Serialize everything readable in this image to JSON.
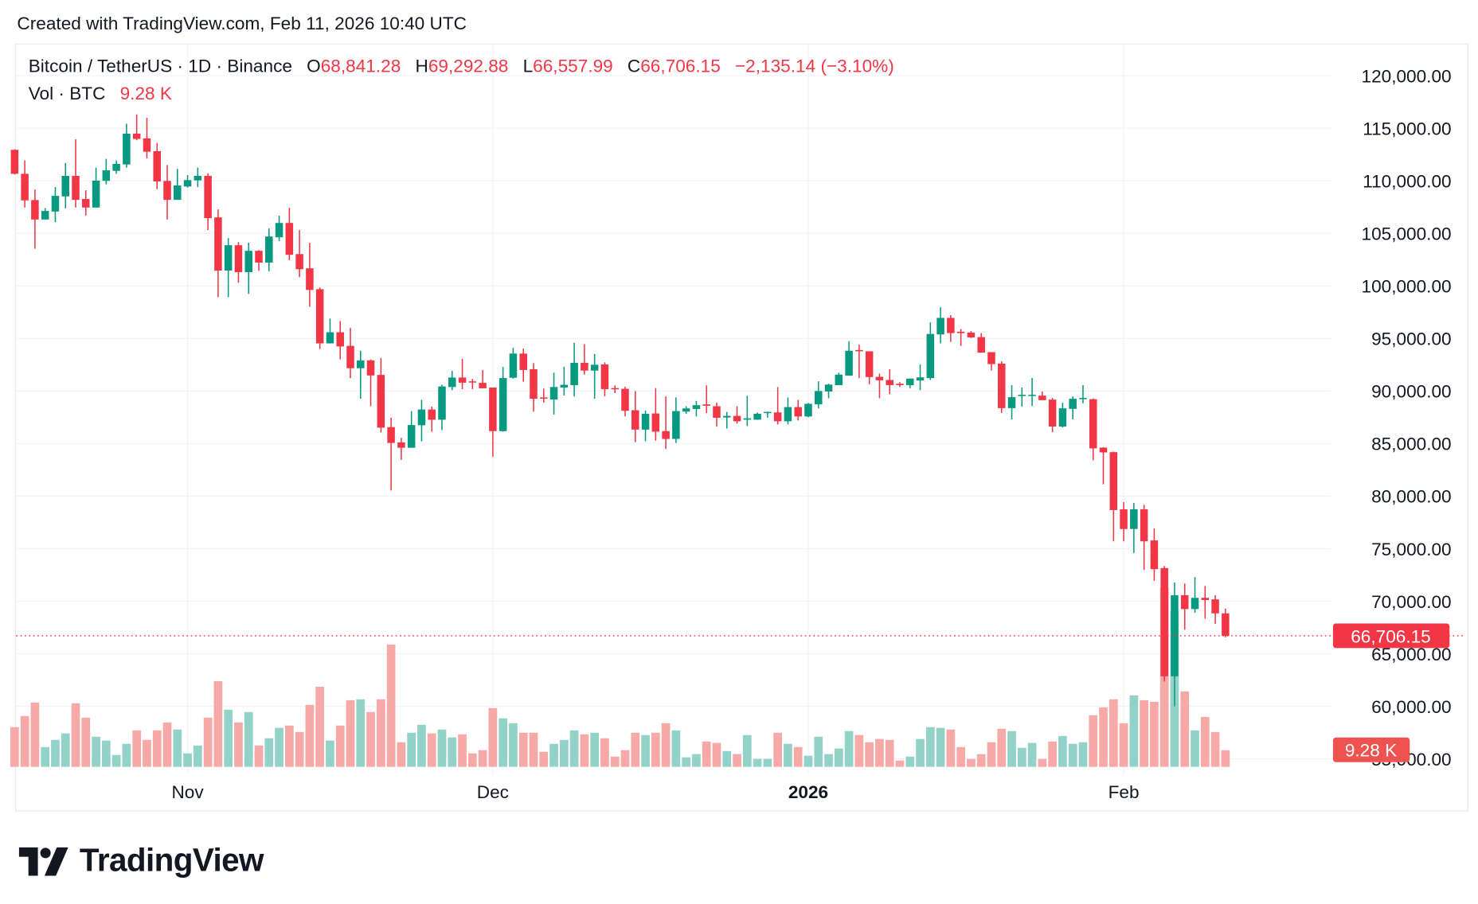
{
  "header": {
    "created_text": "Created with TradingView.com, Feb 11, 2026 10:40 UTC"
  },
  "legend": {
    "symbol": "Bitcoin / TetherUS · 1D · Binance",
    "open_label": "O",
    "open": "68,841.28",
    "high_label": "H",
    "high": "69,292.88",
    "low_label": "L",
    "low": "66,557.99",
    "close_label": "C",
    "close": "66,706.15",
    "change": "−2,135.14 (−3.10%)",
    "vol_label": "Vol · BTC",
    "vol": "9.28 K"
  },
  "logo": {
    "text": "TradingView"
  },
  "colors": {
    "up": "#089981",
    "down": "#f23645",
    "vol_up": "#92d2c8",
    "vol_down": "#f7a9a7",
    "grid": "#f0f3fa"
  },
  "chart_data": {
    "type": "candlestick",
    "interval": "1D",
    "ylim": [
      55000,
      122000
    ],
    "y_ticks": [
      "120,000.00",
      "115,000.00",
      "110,000.00",
      "105,000.00",
      "100,000.00",
      "95,000.00",
      "90,000.00",
      "85,000.00",
      "80,000.00",
      "75,000.00",
      "70,000.00",
      "65,000.00",
      "60,000.00",
      "55,000.00"
    ],
    "y_tick_values": [
      120000,
      115000,
      110000,
      105000,
      100000,
      95000,
      90000,
      85000,
      80000,
      75000,
      70000,
      65000,
      60000,
      55000
    ],
    "x_ticks": [
      {
        "label": "Nov",
        "date": "2025-11-01",
        "bold": false
      },
      {
        "label": "Dec",
        "date": "2025-12-01",
        "bold": false
      },
      {
        "label": "2026",
        "date": "2026-01-01",
        "bold": true
      },
      {
        "label": "Feb",
        "date": "2026-02-01",
        "bold": false
      }
    ],
    "last_price_label": "66,706.15",
    "last_price": 66706.15,
    "last_volume_label": "9.28 K",
    "grid": true,
    "volume_unit": "K BTC",
    "candles_columns": [
      "date",
      "open",
      "high",
      "low",
      "close",
      "volume"
    ],
    "candles": [
      [
        "2025-10-15",
        112950,
        113000,
        110600,
        110670,
        22.1
      ],
      [
        "2025-10-16",
        110670,
        111940,
        107460,
        108140,
        28.3
      ],
      [
        "2025-10-17",
        108170,
        109180,
        103540,
        106320,
        35.8
      ],
      [
        "2025-10-18",
        106320,
        107410,
        106320,
        107130,
        11.0
      ],
      [
        "2025-10-19",
        107080,
        109410,
        106070,
        108570,
        15.0
      ],
      [
        "2025-10-20",
        108520,
        111690,
        107380,
        110470,
        18.6
      ],
      [
        "2025-10-21",
        110470,
        113960,
        107460,
        108190,
        35.4
      ],
      [
        "2025-10-22",
        108270,
        109100,
        106700,
        107460,
        27.4
      ],
      [
        "2025-10-23",
        107460,
        111260,
        107460,
        110020,
        16.8
      ],
      [
        "2025-10-24",
        110000,
        112090,
        109660,
        111000,
        14.6
      ],
      [
        "2025-10-25",
        110950,
        111940,
        110670,
        111610,
        6.6
      ],
      [
        "2025-10-26",
        111560,
        115430,
        111260,
        114490,
        12.8
      ],
      [
        "2025-10-27",
        114490,
        116320,
        113860,
        113990,
        20.3
      ],
      [
        "2025-10-28",
        114040,
        116010,
        112140,
        112770,
        15.0
      ],
      [
        "2025-10-29",
        112820,
        113610,
        109210,
        109940,
        20.3
      ],
      [
        "2025-10-30",
        109990,
        111510,
        106320,
        108190,
        24.7
      ],
      [
        "2025-10-31",
        108190,
        111130,
        108190,
        109560,
        20.8
      ],
      [
        "2025-11-01",
        109460,
        110550,
        109360,
        110070,
        7.5
      ],
      [
        "2025-11-02",
        110040,
        111260,
        109410,
        110470,
        11.9
      ],
      [
        "2025-11-03",
        110470,
        110720,
        105310,
        106450,
        27.4
      ],
      [
        "2025-11-04",
        106520,
        107280,
        98930,
        101460,
        47.7
      ],
      [
        "2025-11-05",
        101460,
        104550,
        98930,
        103870,
        31.8
      ],
      [
        "2025-11-06",
        103870,
        104170,
        100300,
        101310,
        24.7
      ],
      [
        "2025-11-07",
        101310,
        104100,
        99240,
        103340,
        30.5
      ],
      [
        "2025-11-08",
        103340,
        103410,
        101440,
        102220,
        11.9
      ],
      [
        "2025-11-09",
        102220,
        105460,
        101390,
        104700,
        15.9
      ],
      [
        "2025-11-10",
        104630,
        106680,
        104270,
        105990,
        21.7
      ],
      [
        "2025-11-11",
        105990,
        107430,
        102450,
        102960,
        23.0
      ],
      [
        "2025-11-12",
        103030,
        105310,
        100830,
        101590,
        19.4
      ],
      [
        "2025-11-13",
        101670,
        104100,
        98020,
        99620,
        34.5
      ],
      [
        "2025-11-14",
        99690,
        99850,
        94000,
        94530,
        44.6
      ],
      [
        "2025-11-15",
        94530,
        96890,
        94530,
        95590,
        14.6
      ],
      [
        "2025-11-16",
        95590,
        96660,
        93010,
        94240,
        23.0
      ],
      [
        "2025-11-17",
        94290,
        96020,
        91230,
        92170,
        37.1
      ],
      [
        "2025-11-18",
        92170,
        93830,
        89260,
        92910,
        37.6
      ],
      [
        "2025-11-19",
        92910,
        92990,
        88550,
        91480,
        30.5
      ],
      [
        "2025-11-20",
        91530,
        93140,
        86050,
        86510,
        37.6
      ],
      [
        "2025-11-21",
        86560,
        87450,
        80540,
        85060,
        68.1
      ],
      [
        "2025-11-22",
        85110,
        85540,
        83450,
        84600,
        13.7
      ],
      [
        "2025-11-23",
        84600,
        88090,
        84600,
        86760,
        19.0
      ],
      [
        "2025-11-24",
        86740,
        89160,
        85210,
        88240,
        23.4
      ],
      [
        "2025-11-25",
        88240,
        88500,
        86120,
        87270,
        18.6
      ],
      [
        "2025-11-26",
        87270,
        90590,
        86280,
        90430,
        20.8
      ],
      [
        "2025-11-27",
        90380,
        91910,
        90080,
        91280,
        16.4
      ],
      [
        "2025-11-28",
        91280,
        93060,
        90180,
        90790,
        18.1
      ],
      [
        "2025-11-29",
        90920,
        91150,
        90180,
        90840,
        7.5
      ],
      [
        "2025-11-30",
        90770,
        91990,
        90260,
        90260,
        9.3
      ],
      [
        "2025-12-01",
        90330,
        90330,
        83750,
        86180,
        32.7
      ],
      [
        "2025-12-02",
        86180,
        92300,
        86130,
        91230,
        27.0
      ],
      [
        "2025-12-03",
        91260,
        94110,
        91180,
        93560,
        24.3
      ],
      [
        "2025-12-04",
        93560,
        94030,
        90890,
        92000,
        19.0
      ],
      [
        "2025-12-05",
        92070,
        92650,
        88040,
        89260,
        19.0
      ],
      [
        "2025-12-06",
        89390,
        90230,
        88880,
        89310,
        8.4
      ],
      [
        "2025-12-07",
        89190,
        91740,
        87760,
        90380,
        12.8
      ],
      [
        "2025-12-08",
        90330,
        92300,
        89570,
        90590,
        15.0
      ],
      [
        "2025-12-09",
        90560,
        94590,
        89490,
        92680,
        20.3
      ],
      [
        "2025-12-10",
        92680,
        94460,
        91560,
        91940,
        18.1
      ],
      [
        "2025-12-11",
        91940,
        93520,
        89260,
        92500,
        19.0
      ],
      [
        "2025-12-12",
        92530,
        92730,
        89490,
        90180,
        15.9
      ],
      [
        "2025-12-13",
        90280,
        90540,
        89800,
        90210,
        5.7
      ],
      [
        "2025-12-14",
        90210,
        90410,
        87580,
        88120,
        9.3
      ],
      [
        "2025-12-15",
        88170,
        90000,
        85130,
        86330,
        19.0
      ],
      [
        "2025-12-16",
        86330,
        88140,
        85210,
        87830,
        17.7
      ],
      [
        "2025-12-17",
        87860,
        90280,
        85280,
        86130,
        19.0
      ],
      [
        "2025-12-18",
        86180,
        89490,
        84470,
        85440,
        24.3
      ],
      [
        "2025-12-19",
        85440,
        89390,
        85060,
        88090,
        20.3
      ],
      [
        "2025-12-20",
        88040,
        88550,
        87830,
        88340,
        5.3
      ],
      [
        "2025-12-21",
        88290,
        89060,
        87580,
        88650,
        7.1
      ],
      [
        "2025-12-22",
        88730,
        90540,
        87890,
        88600,
        14.1
      ],
      [
        "2025-12-23",
        88550,
        88900,
        86610,
        87450,
        13.3
      ],
      [
        "2025-12-24",
        87480,
        88010,
        86430,
        87630,
        8.8
      ],
      [
        "2025-12-25",
        87630,
        88550,
        86890,
        87120,
        7.1
      ],
      [
        "2025-12-26",
        87270,
        89540,
        86660,
        87400,
        17.7
      ],
      [
        "2025-12-27",
        87270,
        87960,
        87270,
        87830,
        4.4
      ],
      [
        "2025-12-28",
        87910,
        88040,
        87450,
        88010,
        4.4
      ],
      [
        "2025-12-29",
        87960,
        90380,
        86810,
        87120,
        19.0
      ],
      [
        "2025-12-30",
        87120,
        89390,
        86810,
        88470,
        12.8
      ],
      [
        "2025-12-31",
        88470,
        89160,
        87200,
        87580,
        11.0
      ],
      [
        "2026-01-01",
        87580,
        88860,
        87500,
        88780,
        6.2
      ],
      [
        "2026-01-02",
        88730,
        90920,
        88340,
        90000,
        16.8
      ],
      [
        "2026-01-03",
        89950,
        90690,
        89310,
        90610,
        7.1
      ],
      [
        "2026-01-04",
        90560,
        91740,
        90560,
        91560,
        10.2
      ],
      [
        "2026-01-05",
        91460,
        94740,
        91460,
        93830,
        19.9
      ],
      [
        "2026-01-06",
        93900,
        94410,
        91230,
        93780,
        17.7
      ],
      [
        "2026-01-07",
        93780,
        93780,
        90640,
        91330,
        13.7
      ],
      [
        "2026-01-08",
        91350,
        91660,
        89310,
        91020,
        15.5
      ],
      [
        "2026-01-09",
        91050,
        92070,
        89700,
        90560,
        15.0
      ],
      [
        "2026-01-10",
        90690,
        90840,
        90380,
        90560,
        3.5
      ],
      [
        "2026-01-11",
        90560,
        91200,
        90260,
        91180,
        5.7
      ],
      [
        "2026-01-12",
        91000,
        92530,
        90080,
        91300,
        15.5
      ],
      [
        "2026-01-13",
        91230,
        96530,
        91050,
        95430,
        22.1
      ],
      [
        "2026-01-14",
        95380,
        97960,
        94540,
        96960,
        21.7
      ],
      [
        "2026-01-15",
        96960,
        97220,
        94670,
        95510,
        20.8
      ],
      [
        "2026-01-16",
        95640,
        95890,
        94290,
        95510,
        11.0
      ],
      [
        "2026-01-17",
        95560,
        95690,
        95050,
        95100,
        4.4
      ],
      [
        "2026-01-18",
        95130,
        95510,
        93650,
        93650,
        7.1
      ],
      [
        "2026-01-19",
        93700,
        93700,
        91950,
        92560,
        13.7
      ],
      [
        "2026-01-20",
        92610,
        92820,
        87910,
        88370,
        21.2
      ],
      [
        "2026-01-21",
        88370,
        90560,
        87300,
        89410,
        19.9
      ],
      [
        "2026-01-22",
        89540,
        90330,
        88520,
        89640,
        10.6
      ],
      [
        "2026-01-23",
        89540,
        91240,
        88570,
        89640,
        13.3
      ],
      [
        "2026-01-24",
        89560,
        89950,
        89130,
        89130,
        4.4
      ],
      [
        "2026-01-25",
        89180,
        89340,
        86080,
        86620,
        14.1
      ],
      [
        "2026-01-26",
        86620,
        88880,
        86540,
        88350,
        17.2
      ],
      [
        "2026-01-27",
        88300,
        89490,
        87300,
        89260,
        12.8
      ],
      [
        "2026-01-28",
        89260,
        90560,
        88830,
        89340,
        13.7
      ],
      [
        "2026-01-29",
        89220,
        89300,
        83400,
        84540,
        28.7
      ],
      [
        "2026-01-30",
        84610,
        84660,
        81120,
        84160,
        33.1
      ],
      [
        "2026-01-31",
        84180,
        84230,
        75700,
        78670,
        37.6
      ],
      [
        "2026-02-01",
        78740,
        79420,
        75700,
        76870,
        24.3
      ],
      [
        "2026-02-02",
        76870,
        79350,
        74590,
        78740,
        39.8
      ],
      [
        "2026-02-03",
        78740,
        79170,
        72970,
        75700,
        37.1
      ],
      [
        "2026-02-04",
        75780,
        76920,
        71940,
        73050,
        36.2
      ],
      [
        "2026-02-05",
        73150,
        73350,
        62350,
        62850,
        99.9
      ],
      [
        "2026-02-06",
        62850,
        71780,
        59990,
        70570,
        86.8
      ],
      [
        "2026-02-07",
        70570,
        71680,
        67280,
        69250,
        42.0
      ],
      [
        "2026-02-08",
        69250,
        72290,
        68900,
        70320,
        20.3
      ],
      [
        "2026-02-09",
        70320,
        71450,
        68340,
        70110,
        27.8
      ],
      [
        "2026-02-10",
        70170,
        70570,
        67840,
        68841.28,
        19.4
      ],
      [
        "2026-02-11",
        68841.28,
        69292.88,
        66557.99,
        66706.15,
        9.28
      ]
    ]
  }
}
